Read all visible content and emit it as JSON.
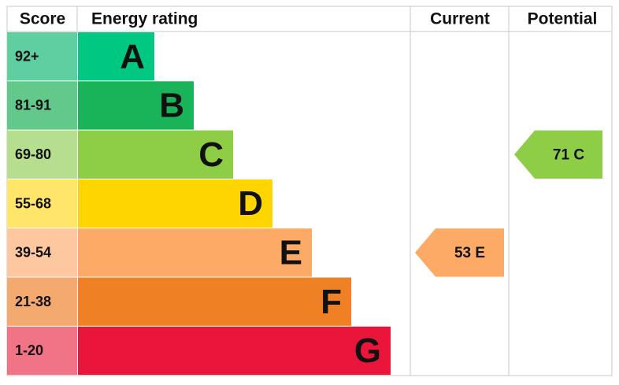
{
  "header": {
    "score": "Score",
    "rating": "Energy rating",
    "current": "Current",
    "potential": "Potential"
  },
  "bands": [
    {
      "score": "92+",
      "letter": "A",
      "color": "#00c781",
      "score_color": "#5fcea0"
    },
    {
      "score": "81-91",
      "letter": "B",
      "color": "#19b459",
      "score_color": "#63c98a"
    },
    {
      "score": "69-80",
      "letter": "C",
      "color": "#8dce46",
      "score_color": "#b5df8e"
    },
    {
      "score": "55-68",
      "letter": "D",
      "color": "#ffd500",
      "score_color": "#ffe56a"
    },
    {
      "score": "39-54",
      "letter": "E",
      "color": "#fcaa65",
      "score_color": "#fdc7a0"
    },
    {
      "score": "21-38",
      "letter": "F",
      "color": "#ef8023",
      "score_color": "#f4aa6e"
    },
    {
      "score": "1-20",
      "letter": "G",
      "color": "#e9153b",
      "score_color": "#f07486"
    }
  ],
  "current": {
    "score": 53,
    "rating": "E"
  },
  "potential": {
    "score": 71,
    "rating": "C"
  }
}
